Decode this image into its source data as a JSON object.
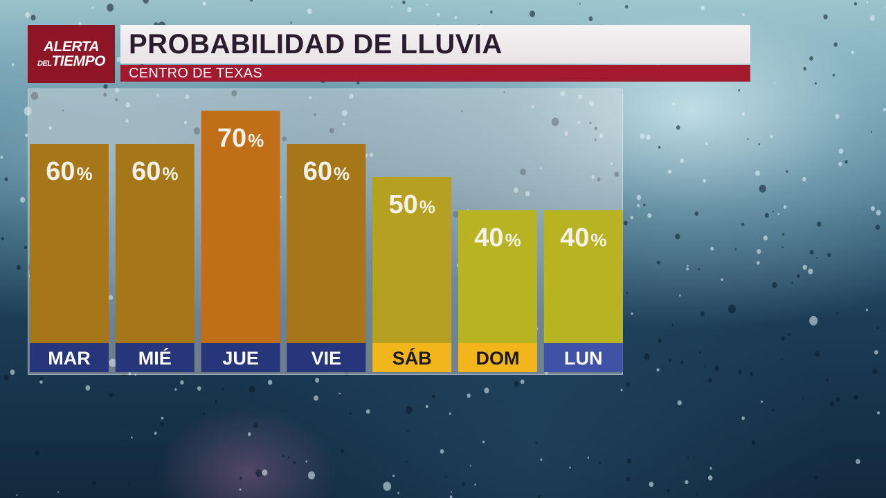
{
  "brand": {
    "line1": "ALERTA",
    "line2_small": "DEL",
    "line2": "TIEMPO"
  },
  "title": "PROBABILIDAD DE LLUVIA",
  "subtitle": "CENTRO DE TEXAS",
  "colors": {
    "bar_60": "#a57719",
    "bar_70": "#c06f18",
    "bar_50": "#b6a01f",
    "bar_40": "#b7b322",
    "label_weekday": "#27357a",
    "label_weekend": "#f2b51b",
    "label_lun": "#4052a6"
  },
  "chart_data": {
    "type": "bar",
    "title": "PROBABILIDAD DE LLUVIA",
    "subtitle": "CENTRO DE TEXAS",
    "categories": [
      "MAR",
      "MIÉ",
      "JUE",
      "VIE",
      "SÁB",
      "DOM",
      "LUN"
    ],
    "values": [
      60,
      60,
      70,
      60,
      50,
      40,
      40
    ],
    "unit": "%",
    "ylim": [
      0,
      100
    ],
    "grid": false,
    "bar_colors": [
      "#a57719",
      "#a57719",
      "#c06f18",
      "#a57719",
      "#b6a01f",
      "#b7b322",
      "#b7b322"
    ],
    "label_colors": [
      "#27357a",
      "#27357a",
      "#27357a",
      "#27357a",
      "#f2b51b",
      "#f2b51b",
      "#4052a6"
    ],
    "label_text_colors": [
      "#ffffff",
      "#ffffff",
      "#ffffff",
      "#ffffff",
      "#1b1b1b",
      "#1b1b1b",
      "#ffffff"
    ]
  }
}
